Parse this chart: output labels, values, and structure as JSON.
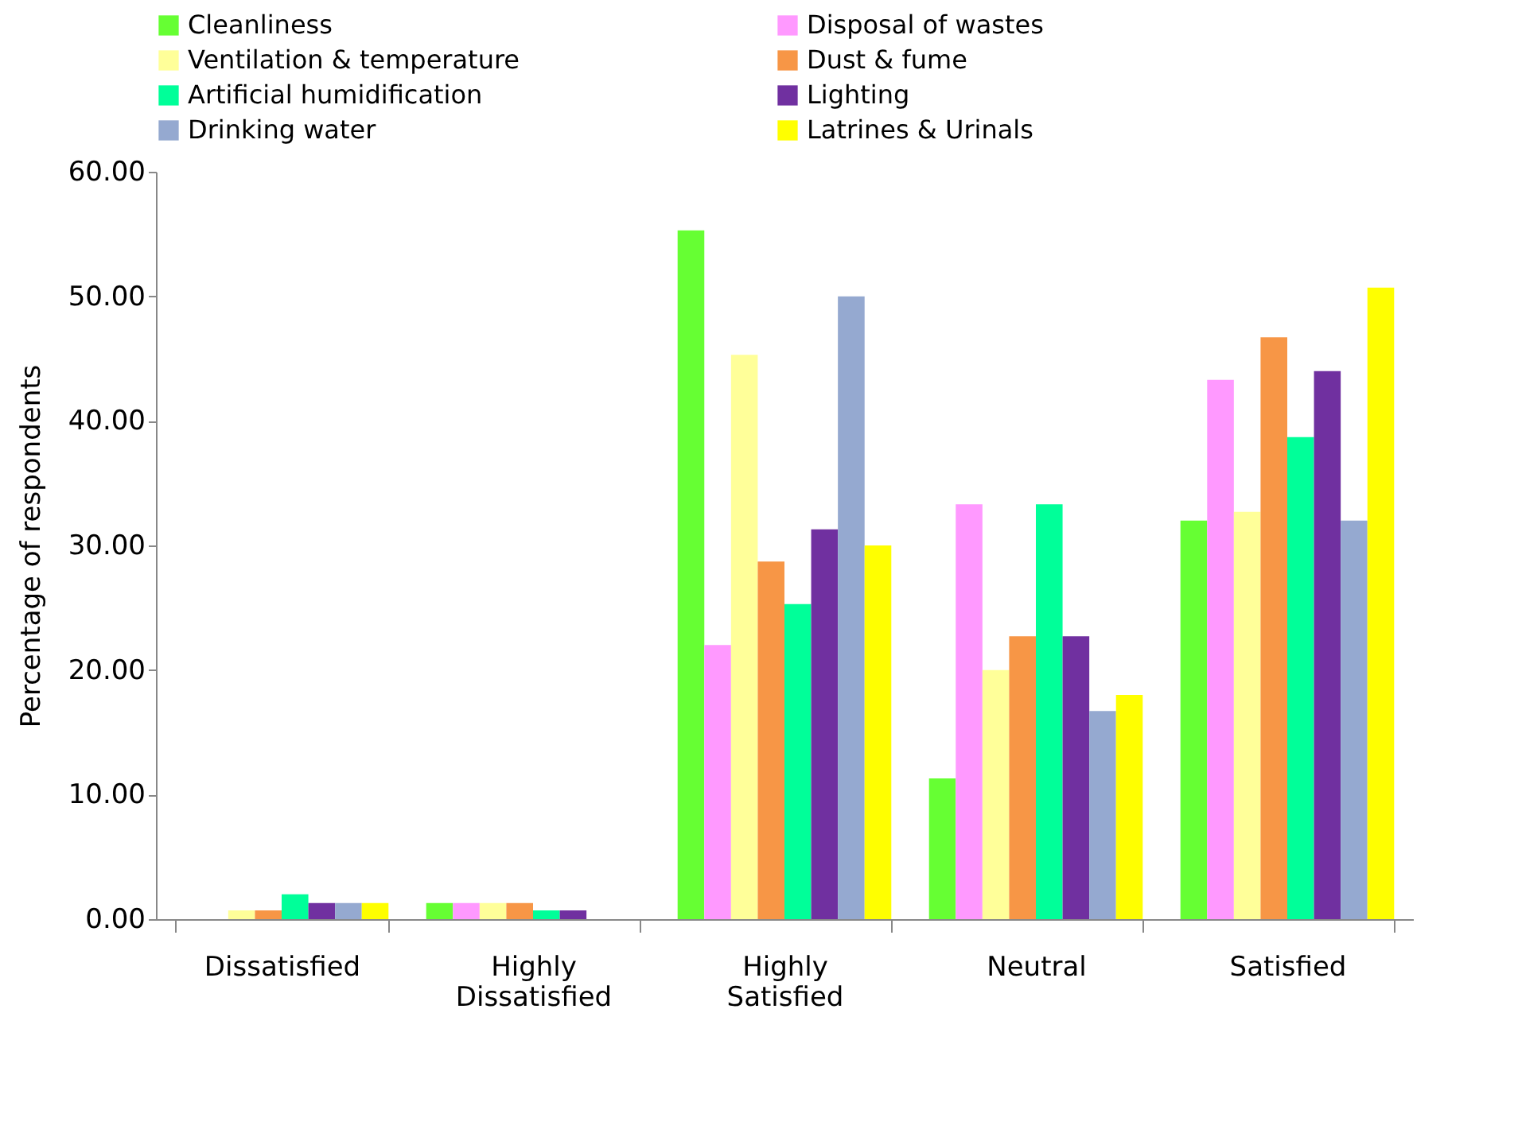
{
  "chart_data": {
    "type": "bar",
    "ylabel": "Percentage of respondents",
    "categories": [
      "Dissatisfied",
      "Highly Dissatisfied",
      "Highly Satisfied",
      "Neutral",
      "Satisfied"
    ],
    "series": [
      {
        "name": "Cleanliness",
        "color": "#66ff33",
        "values": [
          0,
          1.3,
          55.3,
          11.3,
          32
        ]
      },
      {
        "name": "Disposal of wastes",
        "color": "#ff99ff",
        "values": [
          0,
          1.3,
          22,
          33.3,
          43.3
        ]
      },
      {
        "name": "Ventilation & temperature",
        "color": "#ffff99",
        "values": [
          0.7,
          1.3,
          45.3,
          20,
          32.7
        ]
      },
      {
        "name": "Dust & fume",
        "color": "#f79646",
        "values": [
          0.7,
          1.3,
          28.7,
          22.7,
          46.7
        ]
      },
      {
        "name": "Artificial humidification",
        "color": "#00ff99",
        "values": [
          2,
          0.7,
          25.3,
          33.3,
          38.7
        ]
      },
      {
        "name": "Lighting",
        "color": "#7030a0",
        "values": [
          1.3,
          0.7,
          31.3,
          22.7,
          44
        ]
      },
      {
        "name": "Drinking water",
        "color": "#95a9d0",
        "values": [
          1.3,
          0,
          50,
          16.7,
          32
        ]
      },
      {
        "name": "Latrines & Urinals",
        "color": "#ffff00",
        "values": [
          1.3,
          0,
          30,
          18,
          50.7
        ]
      }
    ],
    "ylim": [
      0,
      60
    ],
    "yticks": [
      {
        "value": 0,
        "label": "0.00"
      },
      {
        "value": 10,
        "label": "10.00"
      },
      {
        "value": 20,
        "label": "20.00"
      },
      {
        "value": 30,
        "label": "30.00"
      },
      {
        "value": 40,
        "label": "40.00"
      },
      {
        "value": 50,
        "label": "50.00"
      },
      {
        "value": 60,
        "label": "60.00"
      }
    ],
    "grid": false,
    "legend": "top"
  }
}
